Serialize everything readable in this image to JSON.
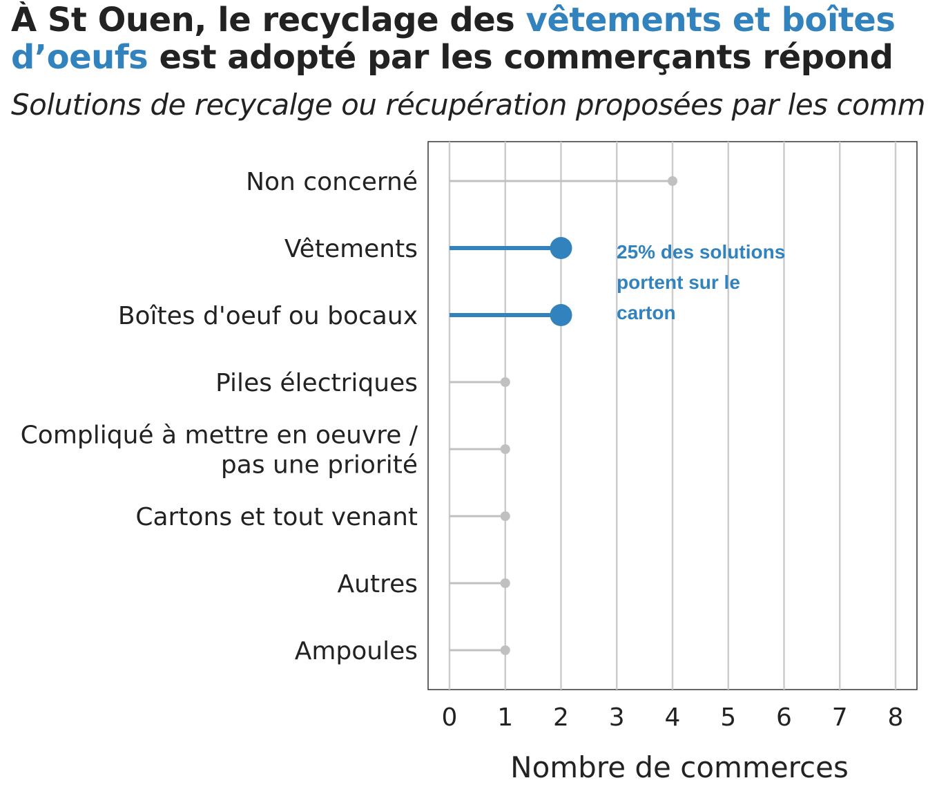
{
  "title": {
    "line1_part1": "À St Ouen, le recyclage des ",
    "line1_highlight": "vêtements et boîtes",
    "line2_highlight": "d’oeufs",
    "line2_part2": " est adopté par les commerçants répond"
  },
  "subtitle": "Solutions de recycalge ou récupération proposées par les comm",
  "colors": {
    "highlight": "#3182bd",
    "muted": "#c0c0c0",
    "grid": "#cccccc",
    "text": "#222222"
  },
  "chart_data": {
    "type": "lollipop",
    "orientation": "horizontal",
    "categories": [
      "Non concerné",
      "Vêtements",
      "Boîtes d'oeuf ou bocaux",
      "Piles électriques",
      "Compliqué à mettre en oeuvre /\npas une priorité",
      "Cartons et tout venant",
      "Autres",
      "Ampoules"
    ],
    "values": [
      4,
      2,
      2,
      1,
      1,
      1,
      1,
      1
    ],
    "highlighted": [
      false,
      true,
      true,
      false,
      false,
      false,
      false,
      false
    ],
    "xlabel": "Nombre de commerces",
    "xlim": [
      0,
      8
    ],
    "xticks": [
      0,
      1,
      2,
      3,
      4,
      5,
      6,
      7,
      8
    ],
    "grid": "vertical",
    "annotation": [
      "25% des solutions",
      "portent sur le",
      "carton"
    ]
  }
}
